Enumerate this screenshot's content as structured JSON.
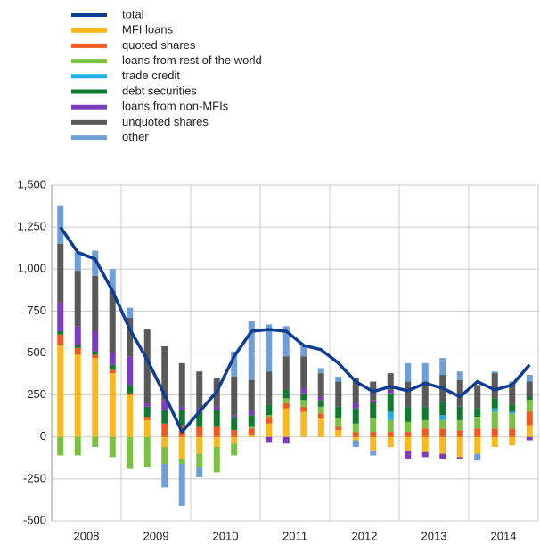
{
  "chart_data": {
    "type": "bar",
    "stacked": true,
    "groups": [
      "2008",
      "2009",
      "2010",
      "2011",
      "2012",
      "2013",
      "2014"
    ],
    "bars_per_group": 4,
    "series": [
      {
        "name": "total",
        "type": "line",
        "color": "#0f3d91",
        "values": [
          1250,
          1100,
          1060,
          870,
          640,
          460,
          250,
          30,
          150,
          270,
          480,
          630,
          640,
          630,
          545,
          520,
          440,
          330,
          270,
          300,
          275,
          320,
          290,
          240,
          330,
          280,
          310,
          430
        ]
      },
      {
        "name": "MFI loans",
        "color": "#f9b81c",
        "values": [
          550,
          490,
          470,
          380,
          250,
          100,
          -60,
          -130,
          -100,
          -60,
          -40,
          10,
          80,
          170,
          150,
          110,
          40,
          -20,
          -80,
          -60,
          -80,
          -90,
          -100,
          -120,
          -100,
          -60,
          -50,
          70
        ]
      },
      {
        "name": "quoted shares",
        "color": "#f15a1f",
        "values": [
          60,
          40,
          20,
          20,
          10,
          20,
          80,
          70,
          60,
          60,
          40,
          40,
          40,
          30,
          30,
          30,
          20,
          30,
          30,
          30,
          30,
          50,
          50,
          40,
          50,
          50,
          50,
          80
        ]
      },
      {
        "name": "loans from rest of the world",
        "color": "#7ac141",
        "values": [
          -110,
          -110,
          -60,
          -120,
          -190,
          -180,
          -100,
          -30,
          -80,
          -150,
          -70,
          10,
          10,
          30,
          40,
          40,
          50,
          50,
          80,
          70,
          60,
          50,
          50,
          60,
          70,
          100,
          90,
          70
        ]
      },
      {
        "name": "trade credit",
        "color": "#1fb0e6",
        "values": [
          0,
          0,
          0,
          0,
          0,
          0,
          0,
          0,
          0,
          0,
          0,
          0,
          0,
          0,
          0,
          0,
          0,
          0,
          0,
          50,
          0,
          0,
          30,
          0,
          0,
          20,
          10,
          0
        ]
      },
      {
        "name": "debt securities",
        "color": "#117a2c",
        "values": [
          20,
          20,
          20,
          30,
          50,
          60,
          80,
          90,
          90,
          100,
          80,
          70,
          60,
          50,
          40,
          40,
          70,
          90,
          100,
          110,
          90,
          80,
          80,
          80,
          50,
          60,
          40,
          20
        ]
      },
      {
        "name": "loans from non-MFIs",
        "color": "#7d3bc2",
        "values": [
          170,
          110,
          120,
          70,
          170,
          20,
          60,
          20,
          20,
          20,
          10,
          30,
          -30,
          -40,
          30,
          20,
          0,
          30,
          10,
          20,
          -50,
          -30,
          -30,
          -10,
          0,
          0,
          0,
          -20
        ]
      },
      {
        "name": "unquoted shares",
        "color": "#595959",
        "values": [
          350,
          330,
          330,
          370,
          230,
          440,
          320,
          260,
          220,
          170,
          230,
          180,
          200,
          200,
          190,
          140,
          150,
          150,
          110,
          100,
          150,
          150,
          160,
          160,
          140,
          150,
          130,
          90
        ]
      },
      {
        "name": "other",
        "color": "#6f9fd8",
        "values": [
          230,
          110,
          150,
          130,
          60,
          0,
          -140,
          -250,
          -60,
          0,
          150,
          350,
          280,
          180,
          70,
          30,
          30,
          -40,
          -30,
          0,
          110,
          110,
          100,
          50,
          -40,
          10,
          10,
          40
        ]
      }
    ],
    "ylim": [
      -500,
      1500
    ],
    "yticks": [
      -500,
      -250,
      0,
      250,
      500,
      750,
      {
        "value": 1000,
        "label": "1,000"
      },
      {
        "value": 1250,
        "label": "1,250"
      },
      {
        "value": 1500,
        "label": "1,500"
      }
    ],
    "grid": true,
    "legend": "top-left"
  }
}
